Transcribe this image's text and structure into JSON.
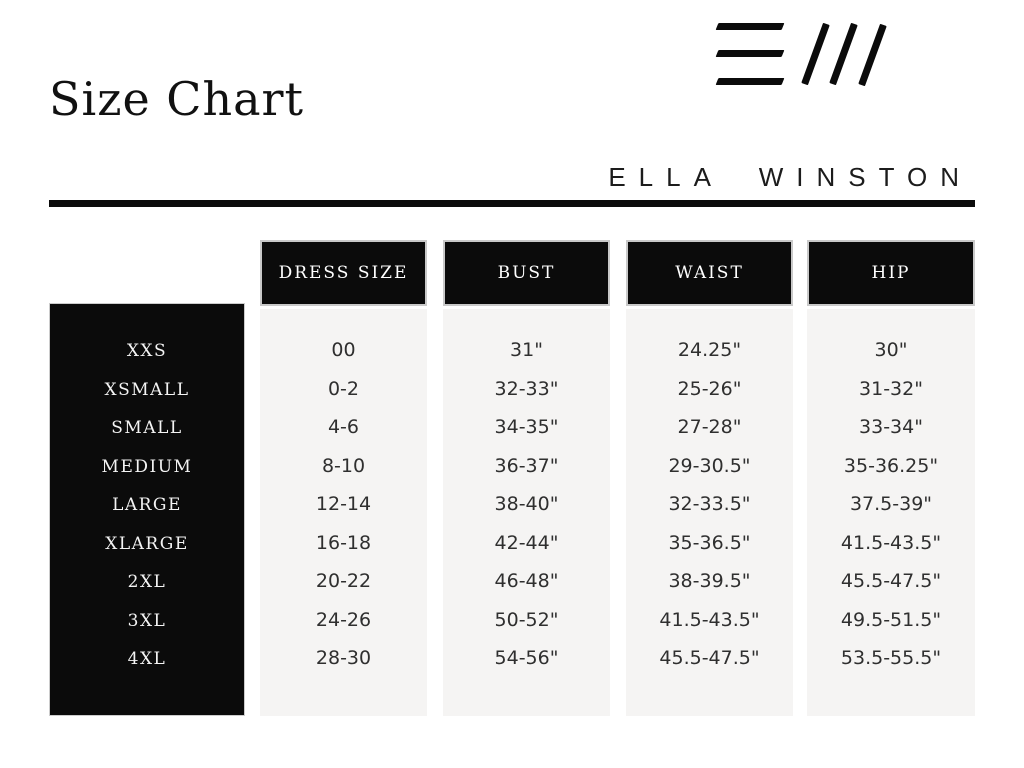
{
  "header": {
    "title": "Size Chart",
    "brand": "ELLA WINSTON",
    "logo_icon": "ew-monogram-icon"
  },
  "table": {
    "columns": [
      "DRESS SIZE",
      "BUST",
      "WAIST",
      "HIP"
    ],
    "rows": [
      {
        "label": "XXS",
        "values": [
          "00",
          "31\"",
          "24.25\"",
          "30\""
        ]
      },
      {
        "label": "XSMALL",
        "values": [
          "0-2",
          "32-33\"",
          "25-26\"",
          "31-32\""
        ]
      },
      {
        "label": "SMALL",
        "values": [
          "4-6",
          "34-35\"",
          "27-28\"",
          "33-34\""
        ]
      },
      {
        "label": "MEDIUM",
        "values": [
          "8-10",
          "36-37\"",
          "29-30.5\"",
          "35-36.25\""
        ]
      },
      {
        "label": "LARGE",
        "values": [
          "12-14",
          "38-40\"",
          "32-33.5\"",
          "37.5-39\""
        ]
      },
      {
        "label": "XLARGE",
        "values": [
          "16-18",
          "42-44\"",
          "35-36.5\"",
          "41.5-43.5\""
        ]
      },
      {
        "label": "2XL",
        "values": [
          "20-22",
          "46-48\"",
          "38-39.5\"",
          "45.5-47.5\""
        ]
      },
      {
        "label": "3XL",
        "values": [
          "24-26",
          "50-52\"",
          "41.5-43.5\"",
          "49.5-51.5\""
        ]
      },
      {
        "label": "4XL",
        "values": [
          "28-30",
          "54-56\"",
          "45.5-47.5\"",
          "53.5-55.5\""
        ]
      }
    ]
  },
  "colors": {
    "black": "#0b0b0b",
    "column_bg": "#f5f4f3",
    "text": "#2f2f2f"
  }
}
